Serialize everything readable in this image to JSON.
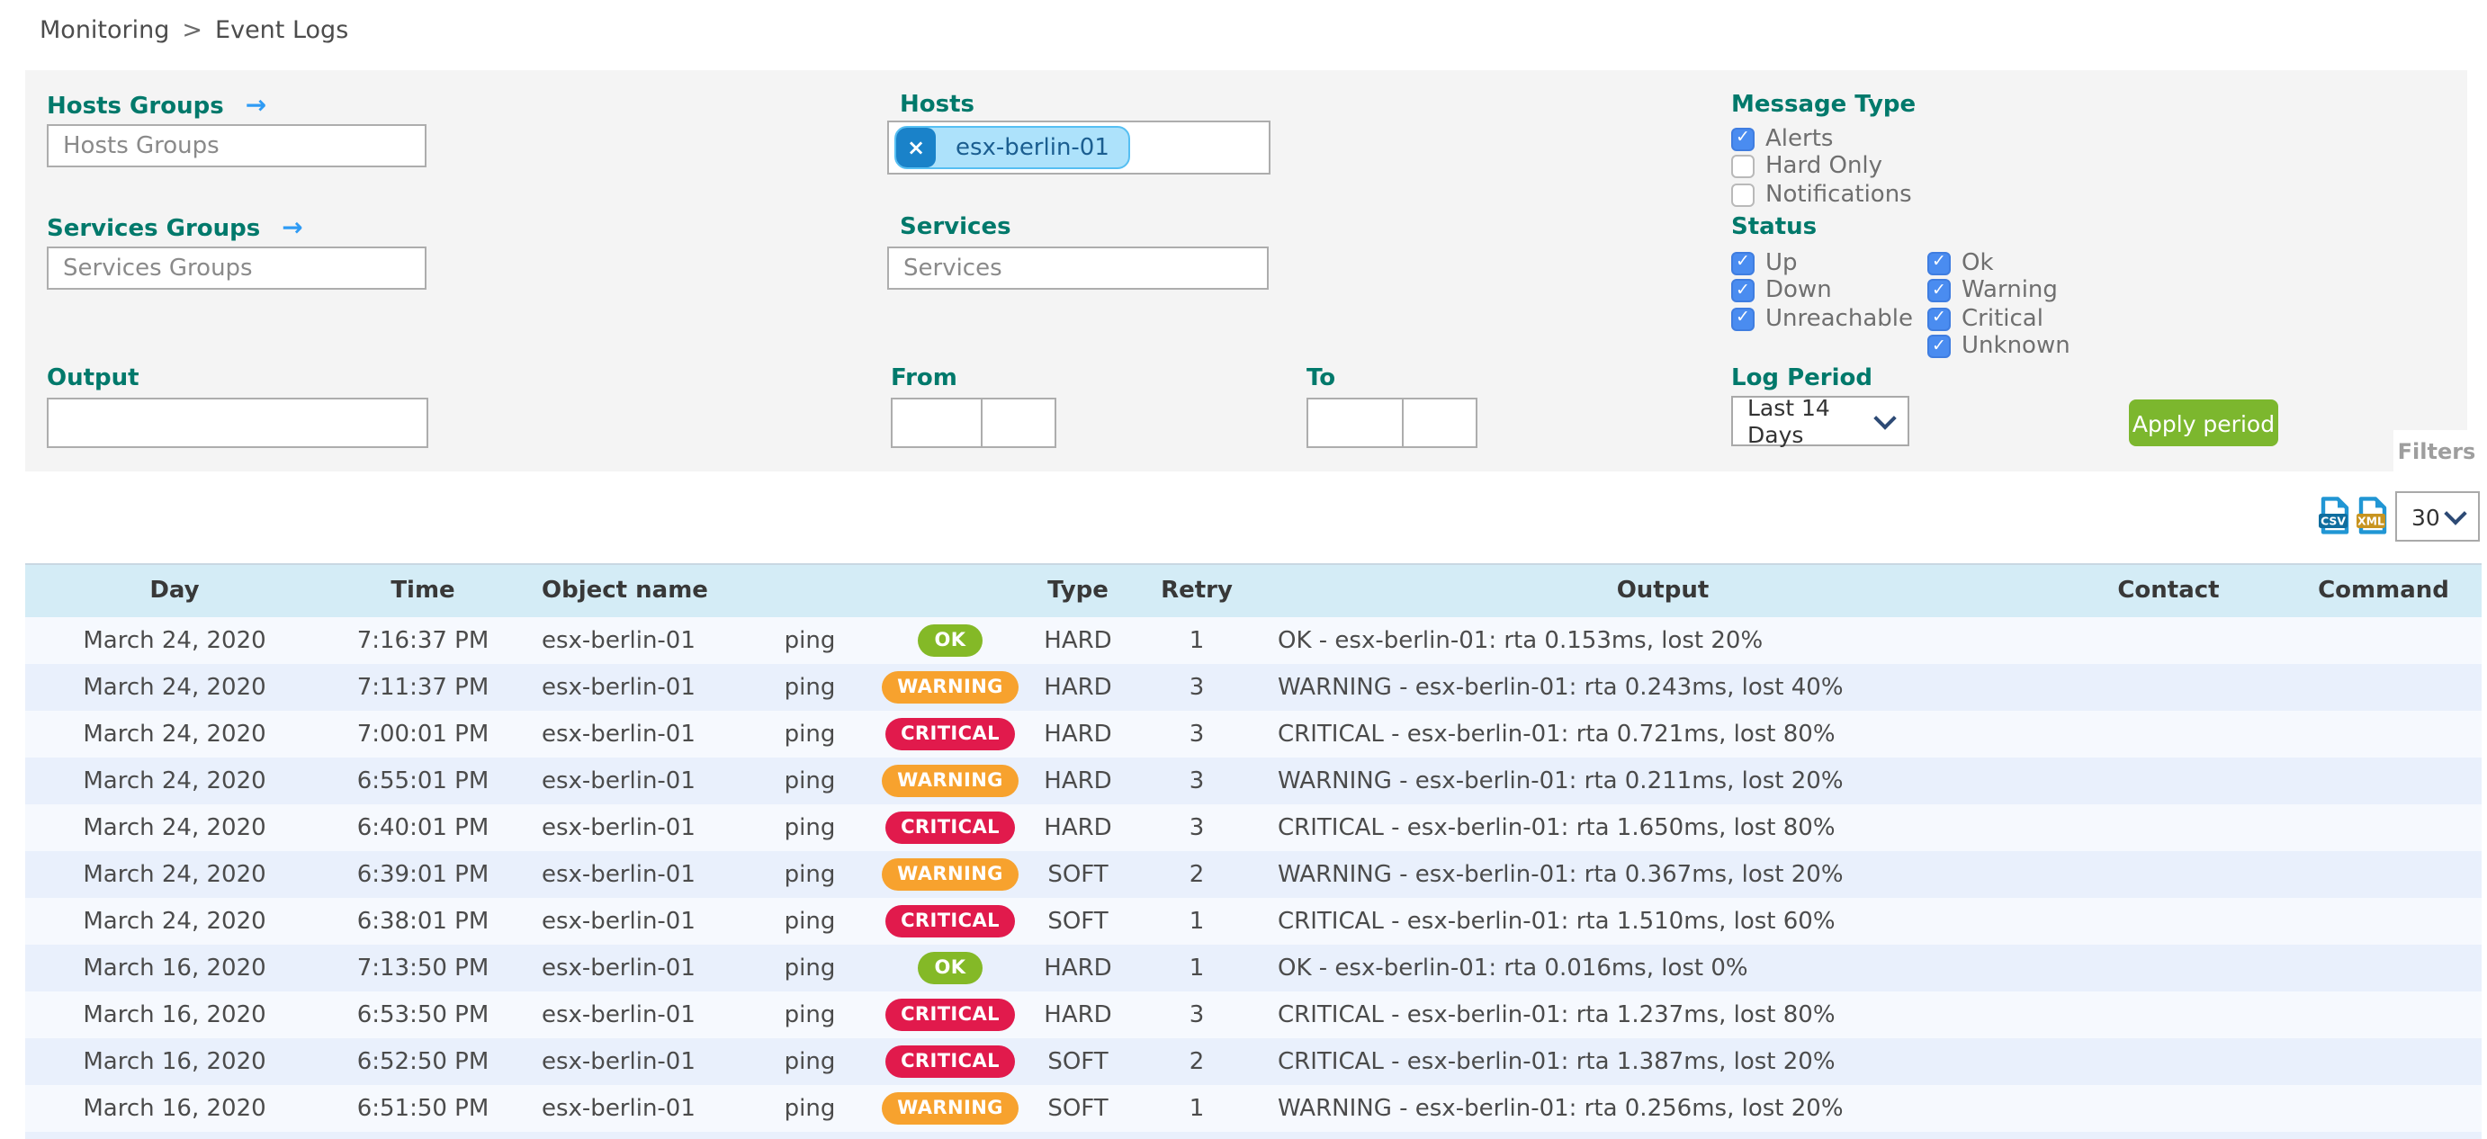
{
  "breadcrumb": {
    "items": [
      "Monitoring",
      "Event Logs"
    ],
    "separator": ">"
  },
  "filter_panel": {
    "tab_label": "Filters",
    "hosts_groups": {
      "label": "Hosts Groups",
      "placeholder": "Hosts Groups",
      "arrow_icon": "→"
    },
    "services_groups": {
      "label": "Services Groups",
      "placeholder": "Services Groups",
      "arrow_icon": "→"
    },
    "hosts": {
      "label": "Hosts",
      "chip": {
        "text": "esx-berlin-01",
        "remove_icon": "×"
      }
    },
    "services": {
      "label": "Services",
      "placeholder": "Services"
    },
    "output": {
      "label": "Output",
      "value": ""
    },
    "from": {
      "label": "From",
      "date_value": "",
      "time_value": ""
    },
    "to": {
      "label": "To",
      "date_value": "",
      "time_value": ""
    },
    "message_type": {
      "label": "Message Type",
      "options": [
        {
          "label": "Alerts",
          "checked": true
        },
        {
          "label": "Hard Only",
          "checked": false
        },
        {
          "label": "Notifications",
          "checked": false
        }
      ]
    },
    "status": {
      "label": "Status",
      "columns": [
        [
          {
            "label": "Up",
            "checked": true
          },
          {
            "label": "Down",
            "checked": true
          },
          {
            "label": "Unreachable",
            "checked": true
          }
        ],
        [
          {
            "label": "Ok",
            "checked": true
          },
          {
            "label": "Warning",
            "checked": true
          },
          {
            "label": "Critical",
            "checked": true
          },
          {
            "label": "Unknown",
            "checked": true
          }
        ]
      ]
    },
    "log_period": {
      "label": "Log Period",
      "selected": "Last 14 Days"
    },
    "apply_button_label": "Apply period"
  },
  "toolbar": {
    "export_csv": "CSV",
    "export_xml": "XML",
    "page_size": "30"
  },
  "table": {
    "headers": {
      "day": "Day",
      "time": "Time",
      "object": "Object name",
      "service": "",
      "status": "",
      "type": "Type",
      "retry": "Retry",
      "output": "Output",
      "contact": "Contact",
      "command": "Command"
    },
    "rows": [
      {
        "day": "March 24, 2020",
        "time": "7:16:37 PM",
        "object": "esx-berlin-01",
        "service": "ping",
        "status": "OK",
        "type": "HARD",
        "retry": "1",
        "output": "OK - esx-berlin-01: rta 0.153ms, lost 20%",
        "contact": "",
        "command": ""
      },
      {
        "day": "March 24, 2020",
        "time": "7:11:37 PM",
        "object": "esx-berlin-01",
        "service": "ping",
        "status": "WARNING",
        "type": "HARD",
        "retry": "3",
        "output": "WARNING - esx-berlin-01: rta 0.243ms, lost 40%",
        "contact": "",
        "command": ""
      },
      {
        "day": "March 24, 2020",
        "time": "7:00:01 PM",
        "object": "esx-berlin-01",
        "service": "ping",
        "status": "CRITICAL",
        "type": "HARD",
        "retry": "3",
        "output": "CRITICAL - esx-berlin-01: rta 0.721ms, lost 80%",
        "contact": "",
        "command": ""
      },
      {
        "day": "March 24, 2020",
        "time": "6:55:01 PM",
        "object": "esx-berlin-01",
        "service": "ping",
        "status": "WARNING",
        "type": "HARD",
        "retry": "3",
        "output": "WARNING - esx-berlin-01: rta 0.211ms, lost 20%",
        "contact": "",
        "command": ""
      },
      {
        "day": "March 24, 2020",
        "time": "6:40:01 PM",
        "object": "esx-berlin-01",
        "service": "ping",
        "status": "CRITICAL",
        "type": "HARD",
        "retry": "3",
        "output": "CRITICAL - esx-berlin-01: rta 1.650ms, lost 80%",
        "contact": "",
        "command": ""
      },
      {
        "day": "March 24, 2020",
        "time": "6:39:01 PM",
        "object": "esx-berlin-01",
        "service": "ping",
        "status": "WARNING",
        "type": "SOFT",
        "retry": "2",
        "output": "WARNING - esx-berlin-01: rta 0.367ms, lost 20%",
        "contact": "",
        "command": ""
      },
      {
        "day": "March 24, 2020",
        "time": "6:38:01 PM",
        "object": "esx-berlin-01",
        "service": "ping",
        "status": "CRITICAL",
        "type": "SOFT",
        "retry": "1",
        "output": "CRITICAL - esx-berlin-01: rta 1.510ms, lost 60%",
        "contact": "",
        "command": ""
      },
      {
        "day": "March 16, 2020",
        "time": "7:13:50 PM",
        "object": "esx-berlin-01",
        "service": "ping",
        "status": "OK",
        "type": "HARD",
        "retry": "1",
        "output": "OK - esx-berlin-01: rta 0.016ms, lost 0%",
        "contact": "",
        "command": ""
      },
      {
        "day": "March 16, 2020",
        "time": "6:53:50 PM",
        "object": "esx-berlin-01",
        "service": "ping",
        "status": "CRITICAL",
        "type": "HARD",
        "retry": "3",
        "output": "CRITICAL - esx-berlin-01: rta 1.237ms, lost 80%",
        "contact": "",
        "command": ""
      },
      {
        "day": "March 16, 2020",
        "time": "6:52:50 PM",
        "object": "esx-berlin-01",
        "service": "ping",
        "status": "CRITICAL",
        "type": "SOFT",
        "retry": "2",
        "output": "CRITICAL - esx-berlin-01: rta 1.387ms, lost 20%",
        "contact": "",
        "command": ""
      },
      {
        "day": "March 16, 2020",
        "time": "6:51:50 PM",
        "object": "esx-berlin-01",
        "service": "ping",
        "status": "WARNING",
        "type": "SOFT",
        "retry": "1",
        "output": "WARNING - esx-berlin-01: rta 0.256ms, lost 20%",
        "contact": "",
        "command": ""
      }
    ]
  },
  "colors": {
    "accent_teal": "#00796b",
    "link_blue": "#2f9bf4",
    "checkbox_blue": "#4a8cf0",
    "apply_green": "#7cb72e",
    "panel_bg": "#f4f4f4",
    "header_bg": "#d4ecf6",
    "row_light": "#f6f9fe",
    "row_blue": "#e9f0fc",
    "badge_ok": "#84b927",
    "badge_warning": "#f7a22e",
    "badge_critical": "#e11a4c",
    "chip_bg": "#ade2fb",
    "chip_border": "#56bff2",
    "chip_x_bg": "#1a82c9",
    "csv_band": "#0f6d9e",
    "xml_band": "#c8941f",
    "file_blue": "#2196d4"
  }
}
